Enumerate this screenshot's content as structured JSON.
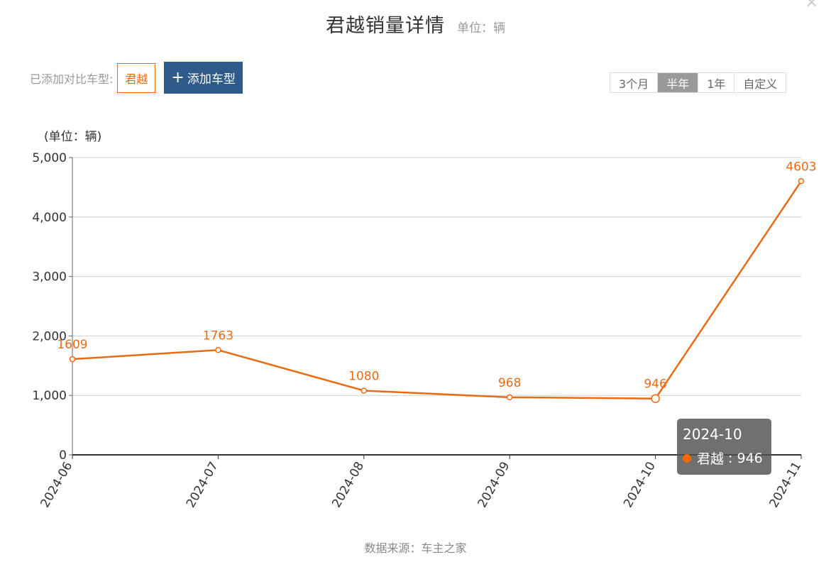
{
  "header": {
    "title": "君越销量详情",
    "title_unit": "单位：辆"
  },
  "compare": {
    "label": "已添加对比车型:",
    "tag": "君越",
    "add_button": "添加车型",
    "add_icon": "plus-icon"
  },
  "range_tabs": [
    {
      "label": "3个月",
      "active": false
    },
    {
      "label": "半年",
      "active": true
    },
    {
      "label": "1年",
      "active": false
    },
    {
      "label": "自定义",
      "active": false
    }
  ],
  "tooltip": {
    "date": "2024-10",
    "series": "君越",
    "value": "946"
  },
  "source": "数据来源：车主之家",
  "colors": {
    "line": "#e86b16",
    "accent_button": "#2f5b8a",
    "tooltip_bg": "#505050"
  },
  "chart_data": {
    "type": "line",
    "title": "",
    "xlabel": "",
    "ylabel": "(单位：辆)",
    "categories": [
      "2024-06",
      "2024-07",
      "2024-08",
      "2024-09",
      "2024-10",
      "2024-11"
    ],
    "series": [
      {
        "name": "君越",
        "values": [
          1609,
          1763,
          1080,
          968,
          946,
          4603
        ]
      }
    ],
    "data_labels": [
      "1609",
      "1763",
      "1080",
      "968",
      "946",
      "4603"
    ],
    "ylim": [
      0,
      5000
    ],
    "yticks": [
      "0",
      "1,000",
      "2,000",
      "3,000",
      "4,000",
      "5,000"
    ],
    "grid": true,
    "highlighted_point": "2024-10"
  }
}
